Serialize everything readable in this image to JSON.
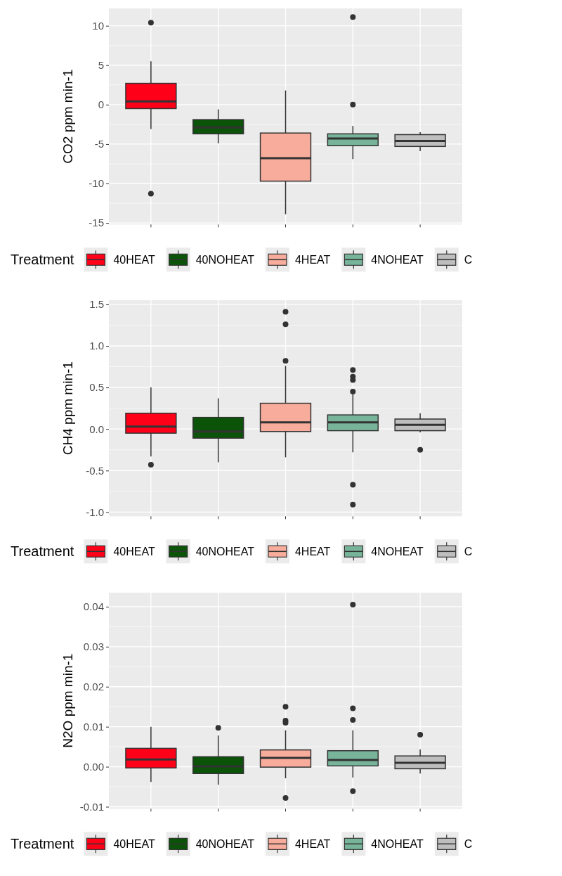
{
  "chart_data": [
    {
      "type": "box",
      "ylabel": "CO2 ppm min-1",
      "legend_title": "Treatment",
      "legend": "bottom",
      "grid": true,
      "tick_labels": "y",
      "categories": [
        null,
        null,
        null,
        null,
        null
      ],
      "ylim": [
        -15.2,
        12.2
      ],
      "yticks": [
        -15,
        -10,
        -5,
        0,
        5,
        10
      ],
      "series": [
        {
          "name": "40HEAT",
          "color": "#ff0019",
          "boxes": [
            {
              "low": -3.1,
              "q1": -0.5,
              "median": 0.4,
              "q3": 2.7,
              "high": 5.5,
              "outliers": [
                10.4,
                -11.3
              ]
            },
            null,
            null,
            null,
            null
          ]
        },
        {
          "name": "40NOHEAT",
          "color": "#0b5309",
          "boxes": [
            null,
            {
              "low": -4.9,
              "q1": -3.7,
              "median": -2.9,
              "q3": -1.9,
              "high": -0.6
            },
            null,
            null,
            null
          ]
        },
        {
          "name": "4HEAT",
          "color": "#f8ac9c",
          "boxes": [
            null,
            null,
            {
              "low": -13.9,
              "q1": -9.7,
              "median": -6.8,
              "q3": -3.6,
              "high": 1.8
            },
            null,
            null
          ]
        },
        {
          "name": "4NOHEAT",
          "color": "#78b49a",
          "boxes": [
            null,
            null,
            null,
            {
              "low": -6.9,
              "q1": -5.2,
              "median": -4.3,
              "q3": -3.7,
              "high": -2.7,
              "outliers": [
                11.1,
                0
              ]
            },
            null
          ]
        },
        {
          "name": "C",
          "color": "#bebebe",
          "boxes": [
            null,
            null,
            null,
            null,
            {
              "low": -5.9,
              "q1": -5.3,
              "median": -4.6,
              "q3": -3.8,
              "high": -3.5
            }
          ]
        }
      ]
    },
    {
      "type": "box",
      "ylabel": "CH4 ppm min-1",
      "legend_title": "Treatment",
      "legend": "bottom",
      "grid": true,
      "tick_labels": "y",
      "categories": [
        null,
        null,
        null,
        null,
        null
      ],
      "ylim": [
        -1.05,
        1.55
      ],
      "yticks": [
        {
          "value": -1,
          "label": "-1.0"
        },
        {
          "value": -0.5,
          "label": "-0.5"
        },
        {
          "value": 0,
          "label": "0.0"
        },
        {
          "value": 0.5,
          "label": "0.5"
        },
        {
          "value": 1,
          "label": "1.0"
        },
        1.5
      ],
      "series": [
        {
          "name": "40HEAT",
          "color": "#ff0019",
          "boxes": [
            {
              "low": -0.33,
              "q1": -0.05,
              "median": 0.03,
              "q3": 0.19,
              "high": 0.5,
              "outliers": [
                -0.43
              ]
            },
            null,
            null,
            null,
            null
          ]
        },
        {
          "name": "40NOHEAT",
          "color": "#0b5309",
          "boxes": [
            null,
            {
              "low": -0.4,
              "q1": -0.11,
              "median": -0.03,
              "q3": 0.14,
              "high": 0.37
            },
            null,
            null,
            null
          ]
        },
        {
          "name": "4HEAT",
          "color": "#f8ac9c",
          "boxes": [
            null,
            null,
            {
              "low": -0.34,
              "q1": -0.03,
              "median": 0.08,
              "q3": 0.31,
              "high": 0.76,
              "outliers": [
                1.41,
                1.26,
                0.82
              ]
            },
            null,
            null
          ]
        },
        {
          "name": "4NOHEAT",
          "color": "#78b49a",
          "boxes": [
            null,
            null,
            null,
            {
              "low": -0.28,
              "q1": -0.02,
              "median": 0.08,
              "q3": 0.17,
              "high": 0.42,
              "outliers": [
                0.71,
                0.63,
                0.59,
                0.45,
                -0.67,
                -0.91
              ]
            },
            null
          ]
        },
        {
          "name": "C",
          "color": "#bebebe",
          "boxes": [
            null,
            null,
            null,
            null,
            {
              "low": -0.04,
              "q1": -0.02,
              "median": 0.05,
              "q3": 0.12,
              "high": 0.19,
              "outliers": [
                -0.25
              ]
            }
          ]
        }
      ]
    },
    {
      "type": "box",
      "ylabel": "N2O ppm min-1",
      "legend_title": "Treatment",
      "legend": "bottom",
      "grid": true,
      "tick_labels": "y",
      "categories": [
        null,
        null,
        null,
        null,
        null
      ],
      "ylim": [
        -0.0105,
        0.0435
      ],
      "yticks": [
        -0.01,
        {
          "value": 0,
          "label": "0.00"
        },
        0.01,
        0.02,
        0.03,
        0.04
      ],
      "series": [
        {
          "name": "40HEAT",
          "color": "#ff0019",
          "boxes": [
            {
              "low": -0.0038,
              "q1": -0.0003,
              "median": 0.0018,
              "q3": 0.0046,
              "high": 0.01
            },
            null,
            null,
            null,
            null
          ]
        },
        {
          "name": "40NOHEAT",
          "color": "#0b5309",
          "boxes": [
            null,
            {
              "low": -0.0045,
              "q1": -0.0017,
              "median": 0.0001,
              "q3": 0.0025,
              "high": 0.0078,
              "outliers": [
                0.0097
              ]
            },
            null,
            null,
            null
          ]
        },
        {
          "name": "4HEAT",
          "color": "#f8ac9c",
          "boxes": [
            null,
            null,
            {
              "low": -0.0029,
              "q1": -0.0001,
              "median": 0.0022,
              "q3": 0.0042,
              "high": 0.0091,
              "outliers": [
                0.015,
                0.0115,
                0.011,
                -0.0078
              ]
            },
            null,
            null
          ]
        },
        {
          "name": "4NOHEAT",
          "color": "#78b49a",
          "boxes": [
            null,
            null,
            null,
            {
              "low": -0.0027,
              "q1": 0.0002,
              "median": 0.0017,
              "q3": 0.004,
              "high": 0.0091,
              "outliers": [
                0.0405,
                0.0146,
                0.0117,
                -0.0061
              ]
            },
            null
          ]
        },
        {
          "name": "C",
          "color": "#bebebe",
          "boxes": [
            null,
            null,
            null,
            null,
            {
              "low": -0.0017,
              "q1": -0.0005,
              "median": 0.001,
              "q3": 0.0027,
              "high": 0.0043,
              "outliers": [
                0.008
              ]
            }
          ]
        }
      ]
    }
  ]
}
